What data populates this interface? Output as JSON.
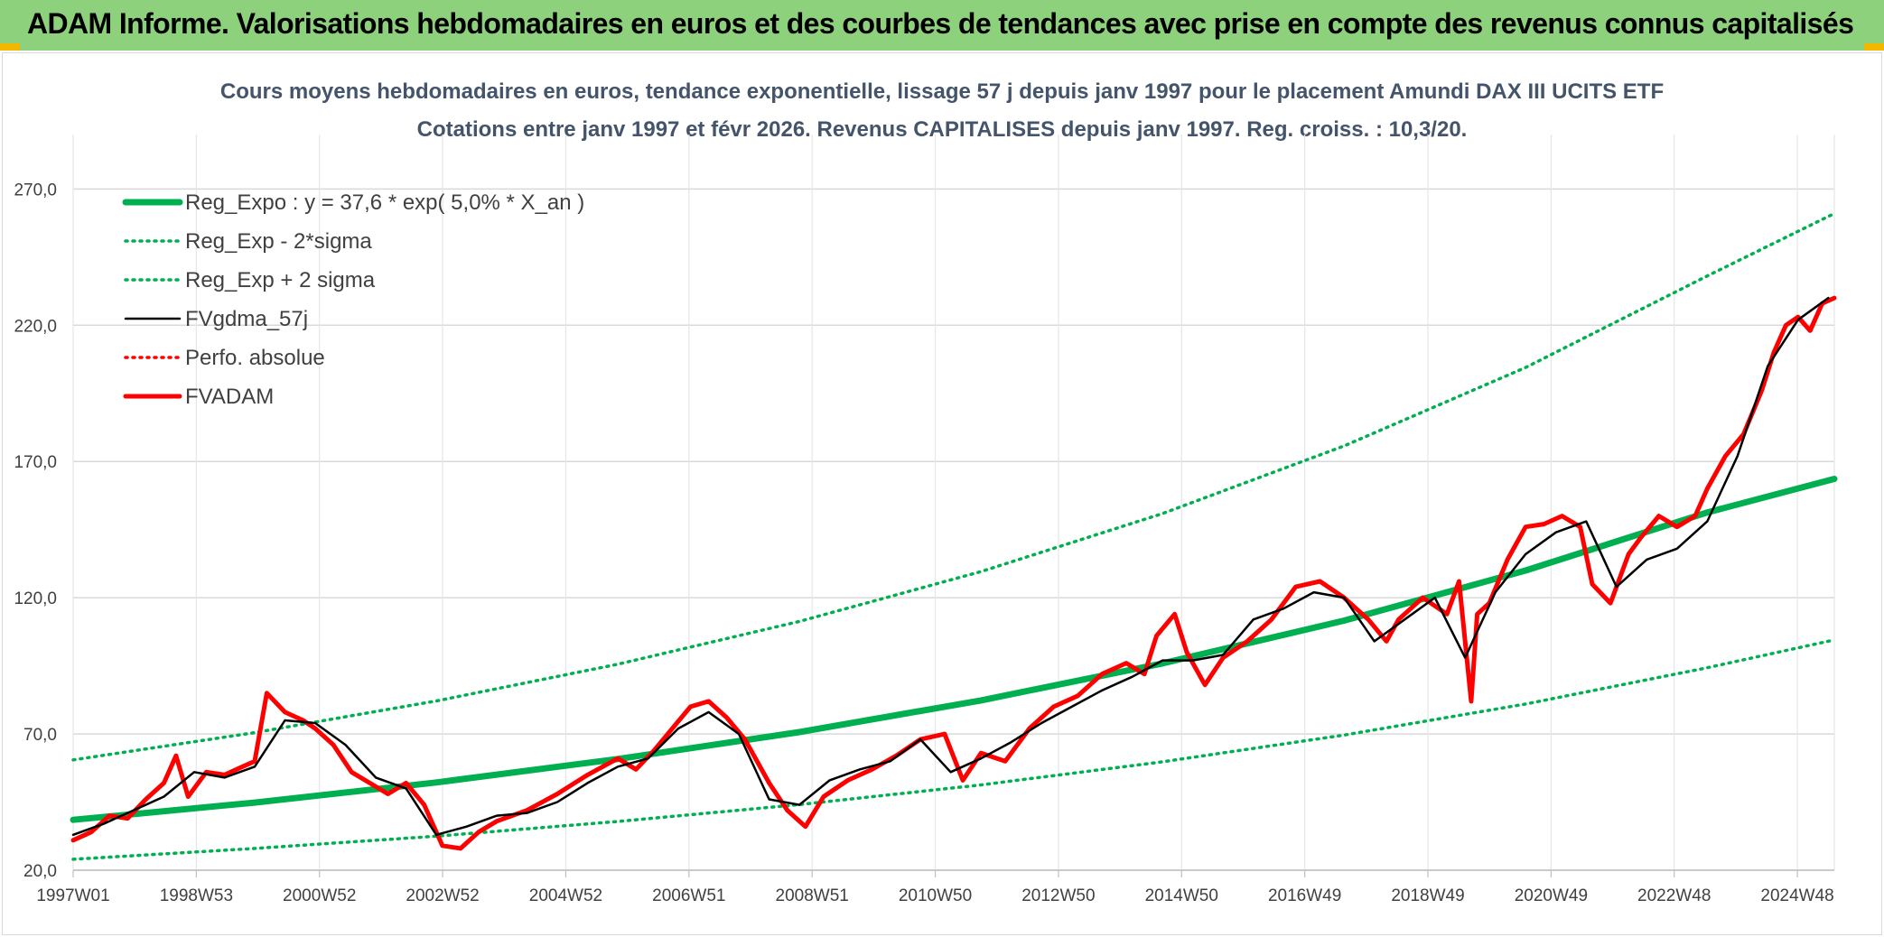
{
  "banner": {
    "title": "ADAM Informe. Valorisations hebdomadaires en euros et des courbes de tendances avec prise en compte des revenus connus capitalisés"
  },
  "colors": {
    "banner_bg": "#8dd17c",
    "banner_accent": "#f2b800",
    "trend": "#00b050",
    "smooth": "#000000",
    "price": "#ff0000",
    "absolute": "#ff0000"
  },
  "chart_data": {
    "type": "line",
    "title": "Cours moyens hebdomadaires en euros, tendance exponentielle, lissage 57 j depuis janv 1997 pour le placement Amundi DAX III UCITS ETF",
    "subtitle": "Cotations entre janv 1997 et févr 2026. Revenus CAPITALISES depuis janv 1997. Reg. croiss. : 10,3/20.",
    "x_tick_labels": [
      "1997W01",
      "1998W53",
      "2000W52",
      "2002W52",
      "2004W52",
      "2006W51",
      "2008W51",
      "2010W50",
      "2012W50",
      "2014W50",
      "2016W49",
      "2018W49",
      "2020W49",
      "2022W48",
      "2024W48"
    ],
    "x_range": [
      1997.0,
      2026.1
    ],
    "y_tick_labels": [
      "20,0",
      "70,0",
      "120,0",
      "170,0",
      "220,0",
      "270,0"
    ],
    "y_ticks": [
      20,
      70,
      120,
      170,
      220,
      270
    ],
    "ylim": [
      20,
      290
    ],
    "grid": true,
    "legend_position": "top-left",
    "series": [
      {
        "name": "Reg_Expo : y = 37,6 * exp( 5,0% *  X_an )",
        "style": "solid-thick",
        "color": "#00b050",
        "x": [
          1997.0,
          2000.0,
          2003.0,
          2006.0,
          2009.0,
          2012.0,
          2015.0,
          2018.0,
          2021.0,
          2024.0,
          2026.1
        ],
        "y": [
          38.5,
          44.8,
          52.2,
          60.8,
          70.7,
          82.3,
          95.9,
          111.6,
          130.0,
          151.3,
          163.6
        ]
      },
      {
        "name": "Reg_Exp - 2*sigma",
        "style": "dotted",
        "color": "#00b050",
        "x": [
          1997.0,
          2000.0,
          2003.0,
          2006.0,
          2009.0,
          2012.0,
          2015.0,
          2018.0,
          2021.0,
          2024.0,
          2026.1
        ],
        "y": [
          24.0,
          28.0,
          32.5,
          37.9,
          44.1,
          51.3,
          59.8,
          69.6,
          81.0,
          94.3,
          104.5
        ]
      },
      {
        "name": "Reg_Exp + 2 sigma",
        "style": "dotted",
        "color": "#00b050",
        "x": [
          1997.0,
          2000.0,
          2003.0,
          2006.0,
          2009.0,
          2012.0,
          2015.0,
          2018.0,
          2021.0,
          2024.0,
          2026.1
        ],
        "y": [
          60.5,
          70.5,
          82.1,
          95.6,
          111.3,
          129.6,
          150.9,
          175.7,
          204.5,
          238.1,
          261.0
        ]
      },
      {
        "name": "FVgdma_57j",
        "style": "solid",
        "color": "#000000",
        "x": [
          1997.0,
          1997.5,
          1998.0,
          1998.5,
          1999.0,
          1999.5,
          2000.0,
          2000.5,
          2001.0,
          2001.5,
          2002.0,
          2002.5,
          2003.0,
          2003.5,
          2004.0,
          2004.5,
          2005.0,
          2005.5,
          2006.0,
          2006.5,
          2007.0,
          2007.5,
          2008.0,
          2008.5,
          2009.0,
          2009.5,
          2010.0,
          2010.5,
          2011.0,
          2011.5,
          2012.0,
          2012.5,
          2013.0,
          2013.5,
          2014.0,
          2014.5,
          2015.0,
          2015.5,
          2016.0,
          2016.5,
          2017.0,
          2017.5,
          2018.0,
          2018.5,
          2019.0,
          2019.5,
          2020.0,
          2020.5,
          2021.0,
          2021.5,
          2022.0,
          2022.5,
          2023.0,
          2023.5,
          2024.0,
          2024.5,
          2025.0,
          2025.5,
          2026.0
        ],
        "y": [
          33,
          37,
          42,
          47,
          56,
          54,
          58,
          75,
          74,
          66,
          54,
          50,
          33,
          36,
          40,
          41,
          45,
          52,
          58,
          61,
          72,
          78,
          70,
          46,
          44,
          53,
          57,
          60,
          68,
          56,
          61,
          67,
          74,
          80,
          86,
          91,
          97,
          97,
          99,
          112,
          116,
          122,
          120,
          104,
          112,
          120,
          98,
          122,
          136,
          144,
          148,
          124,
          134,
          138,
          148,
          172,
          205,
          222,
          230
        ]
      },
      {
        "name": "Perfo. absolue",
        "style": "dotted",
        "color": "#ff0000",
        "x": [],
        "y": []
      },
      {
        "name": "FVADAM",
        "style": "solid-thick",
        "color": "#ff0000",
        "x": [
          1997.0,
          1997.3,
          1997.6,
          1997.9,
          1998.2,
          1998.5,
          1998.7,
          1998.9,
          1999.2,
          1999.5,
          1999.8,
          2000.0,
          2000.2,
          2000.5,
          2000.8,
          2001.0,
          2001.3,
          2001.6,
          2001.9,
          2002.2,
          2002.5,
          2002.8,
          2003.1,
          2003.4,
          2003.7,
          2004.0,
          2004.5,
          2005.0,
          2005.5,
          2006.0,
          2006.3,
          2006.6,
          2006.9,
          2007.2,
          2007.5,
          2007.8,
          2008.1,
          2008.5,
          2008.8,
          2009.1,
          2009.4,
          2009.8,
          2010.2,
          2010.6,
          2011.0,
          2011.4,
          2011.7,
          2012.0,
          2012.4,
          2012.8,
          2013.2,
          2013.6,
          2014.0,
          2014.4,
          2014.7,
          2014.9,
          2015.2,
          2015.4,
          2015.7,
          2016.0,
          2016.4,
          2016.8,
          2017.2,
          2017.6,
          2018.0,
          2018.4,
          2018.7,
          2018.9,
          2019.3,
          2019.7,
          2019.9,
          2020.1,
          2020.2,
          2020.4,
          2020.7,
          2021.0,
          2021.3,
          2021.6,
          2021.9,
          2022.1,
          2022.4,
          2022.7,
          2022.9,
          2023.2,
          2023.5,
          2023.8,
          2024.0,
          2024.3,
          2024.6,
          2024.9,
          2025.1,
          2025.3,
          2025.5,
          2025.7,
          2025.9,
          2026.1
        ],
        "y": [
          31,
          34,
          40,
          39,
          46,
          52,
          62,
          47,
          56,
          55,
          58,
          60,
          85,
          78,
          75,
          72,
          66,
          56,
          52,
          48,
          52,
          44,
          29,
          28,
          34,
          38,
          42,
          48,
          55,
          61,
          57,
          64,
          72,
          80,
          82,
          76,
          68,
          52,
          42,
          36,
          47,
          53,
          57,
          62,
          68,
          70,
          53,
          63,
          60,
          72,
          80,
          84,
          92,
          96,
          92,
          106,
          114,
          100,
          88,
          98,
          104,
          112,
          124,
          126,
          120,
          112,
          104,
          112,
          120,
          114,
          126,
          82,
          114,
          118,
          134,
          146,
          147,
          150,
          146,
          125,
          118,
          136,
          142,
          150,
          146,
          150,
          160,
          172,
          180,
          196,
          210,
          220,
          223,
          218,
          228,
          230
        ]
      }
    ]
  }
}
